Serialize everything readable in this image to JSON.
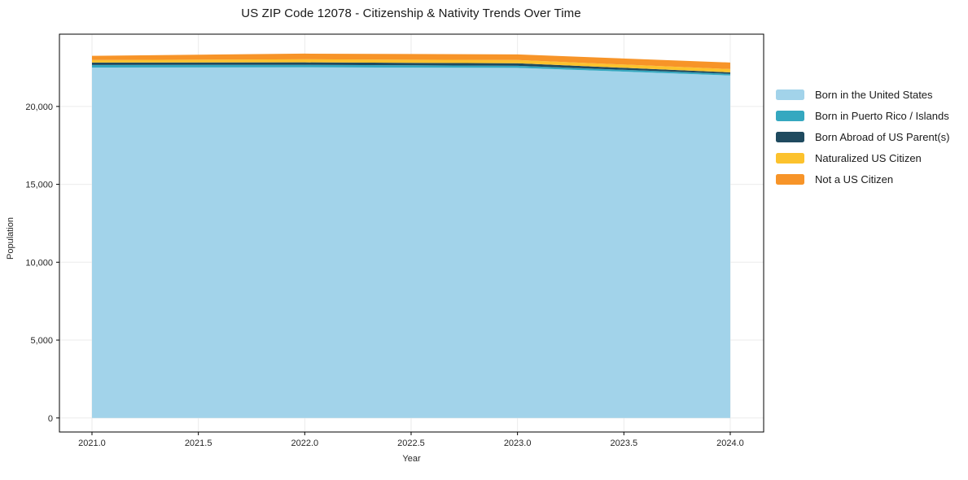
{
  "chart_data": {
    "type": "area",
    "stacked": true,
    "title": "US ZIP Code 12078 - Citizenship & Nativity Trends Over Time",
    "xlabel": "Year",
    "ylabel": "Population",
    "x": [
      2021,
      2022,
      2023,
      2024
    ],
    "xticks": [
      2021.0,
      2021.5,
      2022.0,
      2022.5,
      2023.0,
      2023.5,
      2024.0
    ],
    "xtick_labels": [
      "2021.0",
      "2021.5",
      "2022.0",
      "2022.5",
      "2023.0",
      "2023.5",
      "2024.0"
    ],
    "yticks": [
      0,
      5000,
      10000,
      15000,
      20000
    ],
    "ytick_labels": [
      "0",
      "5,000",
      "10,000",
      "15,000",
      "20,000"
    ],
    "xlim": [
      2020.847,
      2024.157
    ],
    "ylim": [
      -900,
      24640
    ],
    "grid": true,
    "grid_color": "#ebebeb",
    "spine_color": "#000000",
    "legend_position": "right",
    "series": [
      {
        "name": "Born in the United States",
        "color": "#A2D3EA",
        "values": [
          22500,
          22510,
          22480,
          21990
        ]
      },
      {
        "name": "Born in Puerto Rico / Islands",
        "color": "#35A8C0",
        "values": [
          160,
          160,
          130,
          100
        ]
      },
      {
        "name": "Born Abroad of US Parent(s)",
        "color": "#1F4A5F",
        "values": [
          160,
          160,
          160,
          100
        ]
      },
      {
        "name": "Naturalized US Citizen",
        "color": "#FCC22D",
        "values": [
          160,
          200,
          210,
          210
        ]
      },
      {
        "name": "Not a US Citizen",
        "color": "#F79428",
        "values": [
          270,
          360,
          360,
          420
        ]
      }
    ]
  }
}
